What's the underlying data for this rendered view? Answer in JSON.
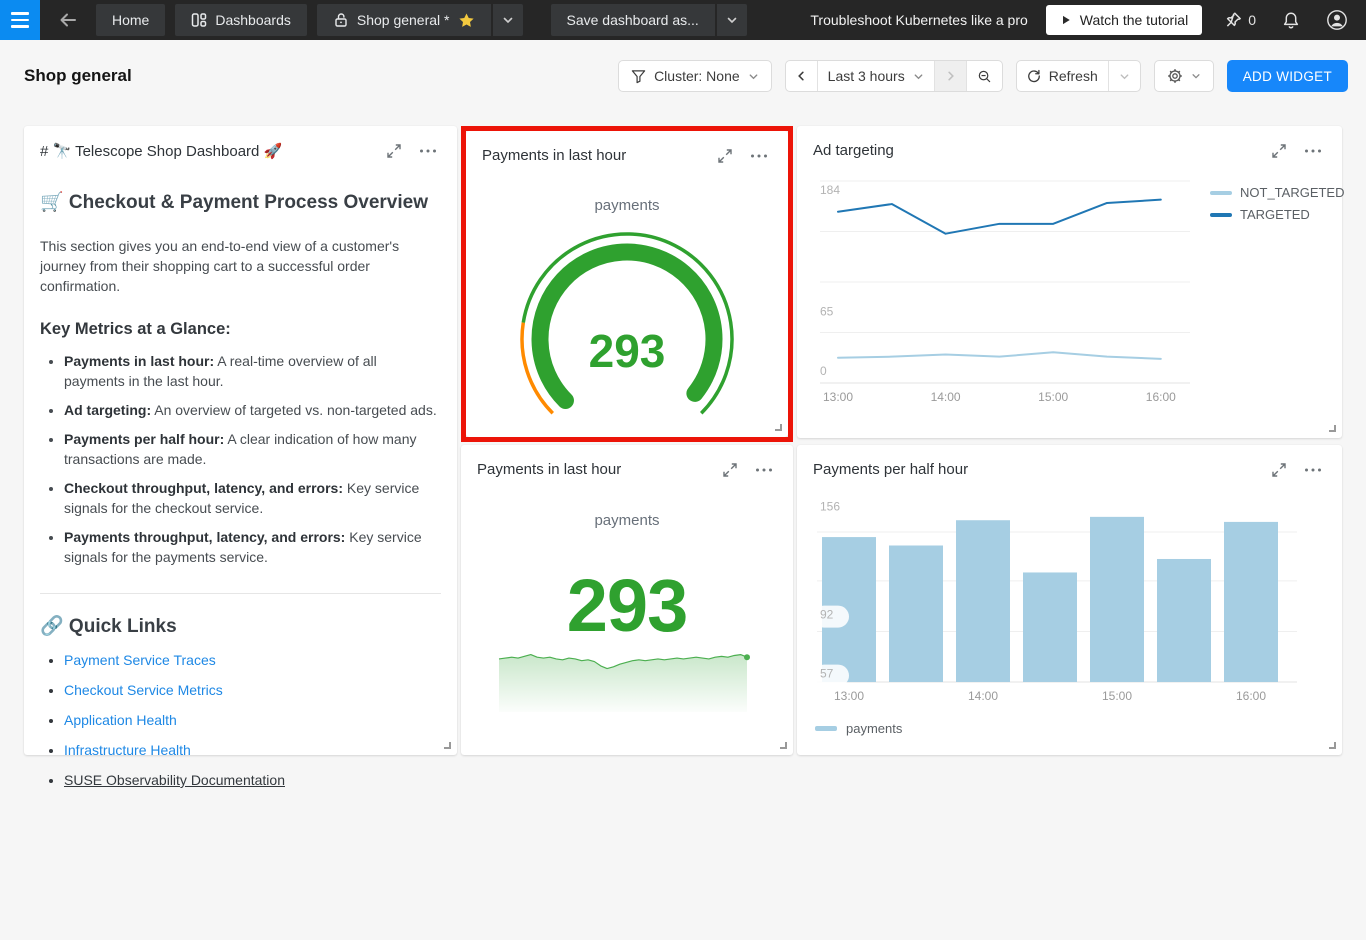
{
  "navbar": {
    "tabs": {
      "home": "Home",
      "dashboards": "Dashboards",
      "current": "Shop general *"
    },
    "save_button": "Save dashboard as...",
    "promo_text": "Troubleshoot Kubernetes like a pro",
    "tutorial_button": "Watch the tutorial",
    "pin_count": "0"
  },
  "header": {
    "title": "Shop general",
    "cluster_filter": "Cluster: None",
    "time_range": "Last 3 hours",
    "refresh_label": "Refresh",
    "add_widget_label": "ADD WIDGET"
  },
  "colors": {
    "accent_blue": "#1787fa",
    "navbar_menu_blue": "#0b8bf1",
    "highlight_red": "#ec1408",
    "gauge_green": "#2fa12f",
    "gauge_orange": "#ff8a00",
    "series_dark_blue": "#2077b4",
    "series_light_blue": "#a6cee3",
    "link_blue": "#1e88e5",
    "star_yellow": "#f3c93f"
  },
  "widgets": {
    "markdown": {
      "title": "# 🔭 Telescope Shop Dashboard 🚀",
      "heading": "🛒 Checkout & Payment Process Overview",
      "intro": "This section gives you an end-to-end view of a customer's journey from their shopping cart to a successful order confirmation.",
      "metrics_heading": "Key Metrics at a Glance:",
      "bullets": [
        {
          "bold": "Payments in last hour:",
          "text": " A real-time overview of all payments in the last hour."
        },
        {
          "bold": "Ad targeting:",
          "text": " An overview of targeted vs. non-targeted ads."
        },
        {
          "bold": "Payments per half hour:",
          "text": " A clear indication of how many transactions are made."
        },
        {
          "bold": "Checkout throughput, latency, and errors:",
          "text": " Key service signals for the checkout service."
        },
        {
          "bold": "Payments throughput, latency, and errors:",
          "text": " Key service signals for the payments service."
        }
      ],
      "links_heading": "🔗 Quick Links",
      "links": [
        "Payment Service Traces",
        "Checkout Service Metrics",
        "Application Health",
        "Infrastructure Health",
        "SUSE Observability Documentation"
      ]
    },
    "gauge": {
      "title": "Payments in last hour",
      "label": "payments",
      "value": "293"
    },
    "ad_targeting": {
      "title": "Ad targeting"
    },
    "big_number": {
      "title": "Payments in last hour",
      "label": "payments",
      "value": "293"
    },
    "bar": {
      "title": "Payments per half hour"
    }
  },
  "chart_data": [
    {
      "id": "payments-gauge",
      "type": "gauge",
      "title": "Payments in last hour",
      "label": "payments",
      "value": 293,
      "max": 300,
      "color": "#2fa12f",
      "zone_color": "#ff8a00",
      "zone_fraction": 0.2,
      "start_angle": 225,
      "end_angle": -45
    },
    {
      "id": "ad-targeting",
      "type": "line",
      "title": "Ad targeting",
      "x": [
        "13:00",
        "13:30",
        "14:00",
        "14:30",
        "15:00",
        "15:30",
        "16:00"
      ],
      "series": [
        {
          "name": "NOT_TARGETED",
          "color": "#a6cee3",
          "values": [
            23,
            24,
            26,
            24,
            28,
            24,
            22
          ]
        },
        {
          "name": "TARGETED",
          "color": "#2077b4",
          "values": [
            156,
            163,
            136,
            145,
            145,
            164,
            167
          ]
        }
      ],
      "ylim": [
        0,
        184
      ],
      "grid_values": [
        184,
        138,
        92,
        46
      ],
      "y_ticks": [
        {
          "label": "184",
          "value": 184
        },
        {
          "label": "65",
          "value": 65
        },
        {
          "label": "0",
          "value": 0
        }
      ],
      "x_ticks": [
        {
          "label": "13:00",
          "index": 0
        },
        {
          "label": "14:00",
          "index": 2
        },
        {
          "label": "15:00",
          "index": 4
        },
        {
          "label": "16:00",
          "index": 6
        }
      ],
      "legend_position": "right",
      "grid": true
    },
    {
      "id": "payments-big-number",
      "type": "area",
      "title": "Payments in last hour",
      "label": "payments",
      "value": 293,
      "color": "#4caf50",
      "values": [
        292,
        293,
        294,
        293,
        295,
        297,
        294,
        293,
        294,
        292,
        291,
        293,
        292,
        290,
        291,
        289,
        284,
        281,
        283,
        286,
        288,
        290,
        291,
        290,
        291,
        292,
        291,
        292,
        293,
        292,
        293,
        294,
        293,
        292,
        294,
        295,
        294,
        296,
        297,
        294
      ]
    },
    {
      "id": "payments-per-half-hour",
      "type": "bar",
      "title": "Payments per half hour",
      "categories": [
        "13:00",
        "13:30",
        "14:00",
        "14:30",
        "15:00",
        "15:30",
        "16:00"
      ],
      "values": [
        138,
        133,
        148,
        117,
        150,
        125,
        147
      ],
      "color": "#a6cee3",
      "ylim": [
        52,
        160
      ],
      "grid_values": [
        141,
        112,
        82
      ],
      "y_ticks": [
        {
          "label": "156",
          "value": 156,
          "pill": false
        },
        {
          "label": "92",
          "value": 92,
          "pill": true
        },
        {
          "label": "57",
          "value": 57,
          "pill": true
        }
      ],
      "x_ticks": [
        {
          "label": "13:00",
          "index": 0
        },
        {
          "label": "14:00",
          "index": 2
        },
        {
          "label": "15:00",
          "index": 4
        },
        {
          "label": "16:00",
          "index": 6
        }
      ],
      "legend": "payments",
      "legend_position": "bottom",
      "grid": true
    }
  ]
}
